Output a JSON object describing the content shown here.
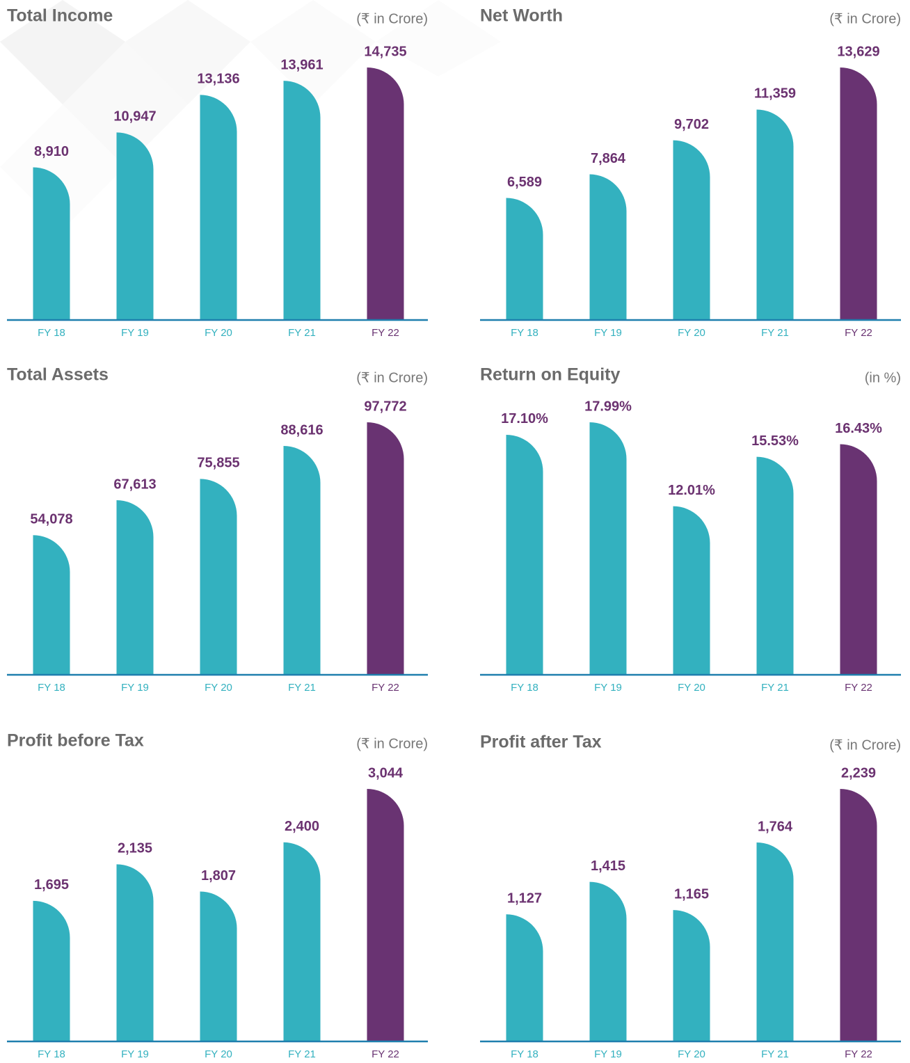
{
  "chart_data": [
    {
      "type": "bar",
      "title": "Total Income",
      "subtitle": "(₹ in Crore)",
      "categories": [
        "FY 18",
        "FY 19",
        "FY 20",
        "FY 21",
        "FY 22"
      ],
      "values": [
        8910,
        10947,
        13136,
        13961,
        14735
      ],
      "value_labels": [
        "8,910",
        "10,947",
        "13,136",
        "13,961",
        "14,735"
      ],
      "colors": [
        "#33b1bf",
        "#33b1bf",
        "#33b1bf",
        "#33b1bf",
        "#693372"
      ]
    },
    {
      "type": "bar",
      "title": "Net Worth",
      "subtitle": "(₹ in Crore)",
      "categories": [
        "FY 18",
        "FY 19",
        "FY 20",
        "FY 21",
        "FY 22"
      ],
      "values": [
        6589,
        7864,
        9702,
        11359,
        13629
      ],
      "value_labels": [
        "6,589",
        "7,864",
        "9,702",
        "11,359",
        "13,629"
      ],
      "colors": [
        "#33b1bf",
        "#33b1bf",
        "#33b1bf",
        "#33b1bf",
        "#693372"
      ]
    },
    {
      "type": "bar",
      "title": "Total Assets",
      "subtitle": "(₹ in Crore)",
      "categories": [
        "FY 18",
        "FY 19",
        "FY 20",
        "FY 21",
        "FY 22"
      ],
      "values": [
        54078,
        67613,
        75855,
        88616,
        97772
      ],
      "value_labels": [
        "54,078",
        "67,613",
        "75,855",
        "88,616",
        "97,772"
      ],
      "colors": [
        "#33b1bf",
        "#33b1bf",
        "#33b1bf",
        "#33b1bf",
        "#693372"
      ]
    },
    {
      "type": "bar",
      "title": "Return on Equity",
      "subtitle": "(in %)",
      "categories": [
        "FY 18",
        "FY 19",
        "FY 20",
        "FY 21",
        "FY 22"
      ],
      "values": [
        17.1,
        17.99,
        12.01,
        15.53,
        16.43
      ],
      "value_labels": [
        "17.10%",
        "17.99%",
        "12.01%",
        "15.53%",
        "16.43%"
      ],
      "colors": [
        "#33b1bf",
        "#33b1bf",
        "#33b1bf",
        "#33b1bf",
        "#693372"
      ]
    },
    {
      "type": "bar",
      "title": "Profit before Tax",
      "subtitle": "(₹ in Crore)",
      "categories": [
        "FY 18",
        "FY 19",
        "FY 20",
        "FY 21",
        "FY 22"
      ],
      "values": [
        1695,
        2135,
        1807,
        2400,
        3044
      ],
      "value_labels": [
        "1,695",
        "2,135",
        "1,807",
        "2,400",
        "3,044"
      ],
      "colors": [
        "#33b1bf",
        "#33b1bf",
        "#33b1bf",
        "#33b1bf",
        "#693372"
      ]
    },
    {
      "type": "bar",
      "title": "Profit after Tax",
      "subtitle": "(₹ in Crore)",
      "categories": [
        "FY 18",
        "FY 19",
        "FY 20",
        "FY 21",
        "FY 22"
      ],
      "values": [
        1127,
        1415,
        1165,
        1764,
        2239
      ],
      "value_labels": [
        "1,127",
        "1,415",
        "1,165",
        "1,764",
        "2,239"
      ],
      "colors": [
        "#33b1bf",
        "#33b1bf",
        "#33b1bf",
        "#33b1bf",
        "#693372"
      ]
    }
  ]
}
